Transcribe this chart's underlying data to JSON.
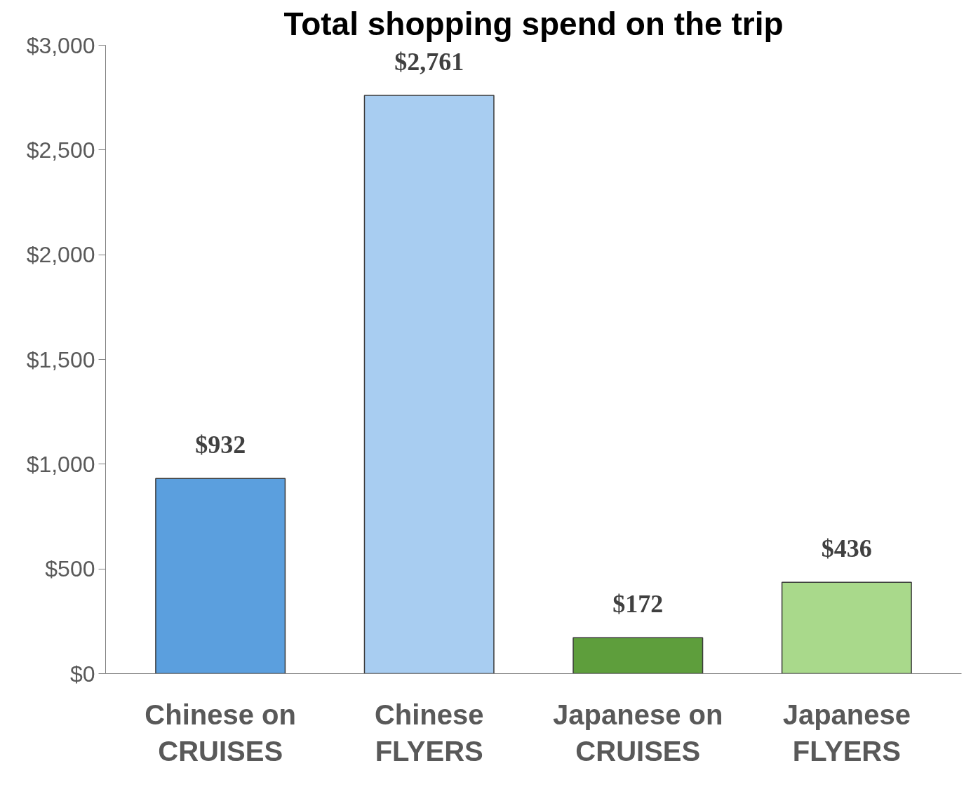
{
  "chart_data": {
    "type": "bar",
    "title": "Total shopping spend on the trip",
    "categories": [
      "Chinese on\nCRUISES",
      "Chinese\nFLYERS",
      "Japanese on\nCRUISES",
      "Japanese\nFLYERS"
    ],
    "values": [
      932,
      2761,
      172,
      436
    ],
    "colors": [
      "#5b9fde",
      "#a8cdf1",
      "#5e9e3c",
      "#a9d98b"
    ],
    "value_labels": [
      "$932",
      "$2,761",
      "$172",
      "$436"
    ],
    "ylim": [
      0,
      3000
    ],
    "yticks": [
      {
        "value": 0,
        "label": "$0"
      },
      {
        "value": 500,
        "label": "$500"
      },
      {
        "value": 1000,
        "label": "$1,000"
      },
      {
        "value": 1500,
        "label": "$1,500"
      },
      {
        "value": 2000,
        "label": "$2,000"
      },
      {
        "value": 2500,
        "label": "$2,500"
      },
      {
        "value": 3000,
        "label": "$3,000"
      }
    ],
    "grid": false
  }
}
